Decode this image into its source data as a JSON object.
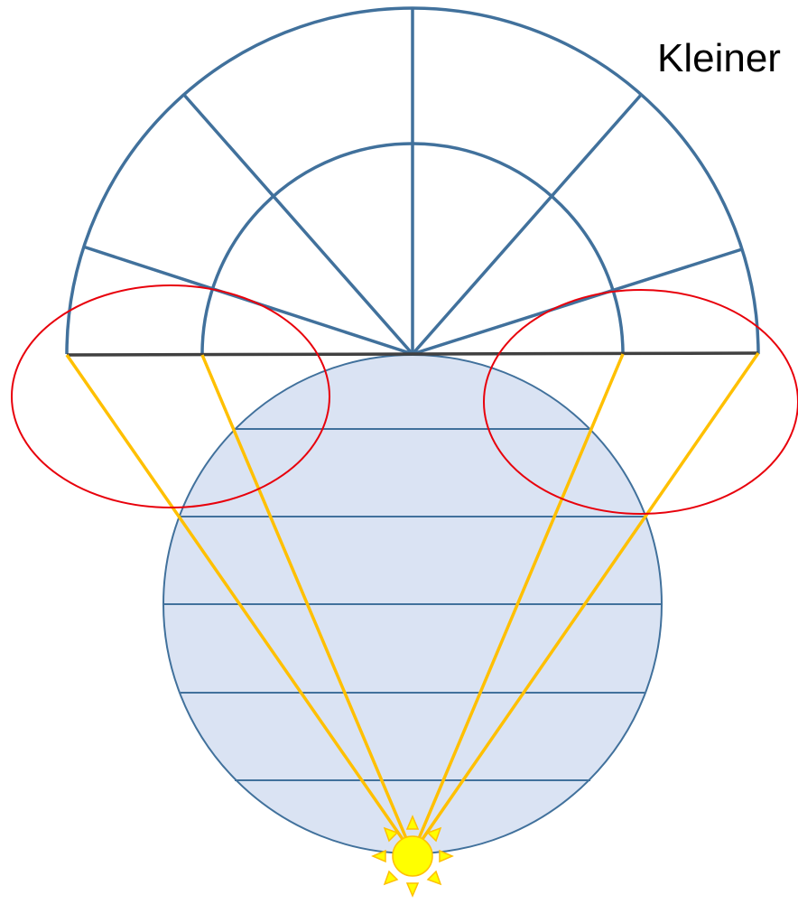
{
  "caption": "Kleiner",
  "colors": {
    "grid_line": "#41719C",
    "globe_fill": "#DAE3F3",
    "globe_outline": "#41719C",
    "horizon_line": "#404040",
    "ray": "#FFC000",
    "highlight_ellipse": "#E8000B",
    "sun_fill": "#FFFF00",
    "sun_stroke": "#FFC000"
  },
  "icons": {
    "light_source": "sun-icon"
  }
}
